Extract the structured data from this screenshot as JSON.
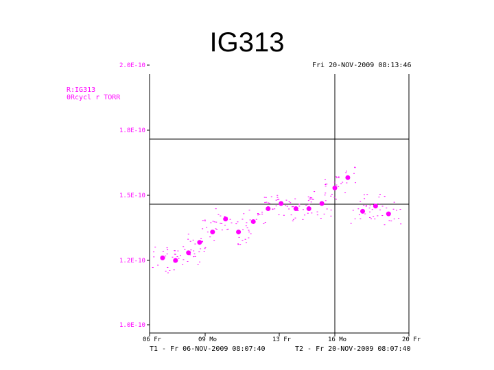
{
  "slide_title": "IG313",
  "chart_data": {
    "type": "scatter",
    "timestamp": "Fri 20-NOV-2009 08:13:46",
    "trace_label": [
      "R:IG313",
      "θRcycl r TORR"
    ],
    "y_tick_labels": [
      "2.0E-10",
      "1.8E-10",
      "1.5E-10",
      "1.2E-10",
      "1.0E-10"
    ],
    "y_ticks": [
      2.0,
      1.8,
      1.5,
      1.2,
      1.0
    ],
    "ylim": [
      1.0,
      2.0
    ],
    "y_scale_label": "E-10 Torr",
    "x_tick_labels": [
      "06 Fr",
      "09 Mo",
      "13 Fr",
      "16 Mo",
      "20 Fr"
    ],
    "x_ticks": [
      0,
      3,
      7,
      10,
      14
    ],
    "xlim": [
      0,
      14
    ],
    "t1_label": "T1 - Fr 06-NOV-2009 08:07:40",
    "t2_label": "T2 - Fr 20-NOV-2009 08:07:40",
    "crosshair": {
      "x": 10.0,
      "y": 1.6,
      "y2": 1.5
    },
    "colors": {
      "points": "#ff00ff",
      "axes": "#000000"
    },
    "series": [
      {
        "x": [
          0.7,
          1.4,
          2.1,
          2.7,
          3.4,
          4.1,
          4.8,
          5.6,
          6.4,
          7.1,
          7.9,
          8.6,
          9.3,
          10.0,
          10.7,
          11.5,
          12.2,
          12.9
        ],
        "values": [
          1.29,
          1.28,
          1.31,
          1.35,
          1.39,
          1.44,
          1.39,
          1.43,
          1.48,
          1.5,
          1.48,
          1.48,
          1.5,
          1.56,
          1.6,
          1.47,
          1.49,
          1.46
        ]
      }
    ]
  }
}
